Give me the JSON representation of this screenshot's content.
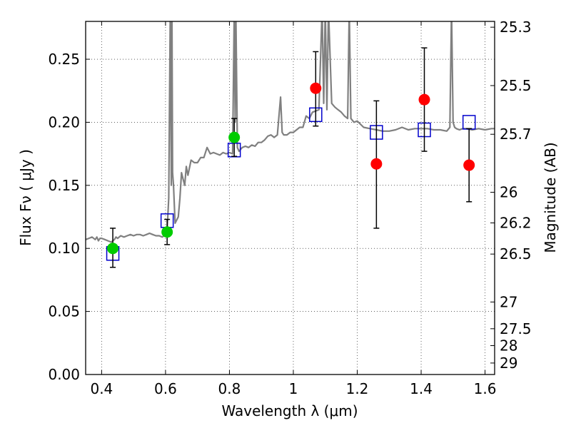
{
  "chart_data": {
    "type": "scatter",
    "title": "",
    "xlabel": "Wavelength  λ (μm)",
    "ylabel": "Flux  Fν  ( μJy )",
    "ylabel_right": "Magnitude (AB)",
    "xlim": [
      0.35,
      1.63
    ],
    "ylim": [
      0.0,
      0.28
    ],
    "grid": true,
    "x_ticks": [
      0.4,
      0.6,
      0.8,
      1.0,
      1.2,
      1.4,
      1.6
    ],
    "x_tick_labels": [
      "0.4",
      "0.6",
      "0.8",
      "1",
      "1.2",
      "1.4",
      "1.6"
    ],
    "y_ticks": [
      0.0,
      0.05,
      0.1,
      0.15,
      0.2,
      0.25
    ],
    "y_tick_labels": [
      "0.00",
      "0.05",
      "0.10",
      "0.15",
      "0.20",
      "0.25"
    ],
    "right_axis_ticks": [
      {
        "flux": 0.2754,
        "label": "25.3"
      },
      {
        "flux": 0.2291,
        "label": "25.5"
      },
      {
        "flux": 0.1905,
        "label": "25.7"
      },
      {
        "flux": 0.1445,
        "label": "26"
      },
      {
        "flux": 0.1202,
        "label": "26.2"
      },
      {
        "flux": 0.0955,
        "label": "26.5"
      },
      {
        "flux": 0.0575,
        "label": "27"
      },
      {
        "flux": 0.0363,
        "label": "27.5"
      },
      {
        "flux": 0.0229,
        "label": "28"
      },
      {
        "flux": 0.0091,
        "label": "29"
      }
    ],
    "series": [
      {
        "style": "model-spectrum",
        "color": "#808080",
        "x": [
          0.35,
          0.36,
          0.37,
          0.38,
          0.385,
          0.39,
          0.395,
          0.4,
          0.41,
          0.42,
          0.43,
          0.44,
          0.445,
          0.45,
          0.46,
          0.47,
          0.48,
          0.49,
          0.5,
          0.51,
          0.52,
          0.53,
          0.54,
          0.55,
          0.56,
          0.57,
          0.58,
          0.59,
          0.6,
          0.605,
          0.61,
          0.613,
          0.615,
          0.618,
          0.62,
          0.622,
          0.625,
          0.63,
          0.64,
          0.645,
          0.65,
          0.655,
          0.66,
          0.665,
          0.67,
          0.68,
          0.69,
          0.7,
          0.71,
          0.72,
          0.73,
          0.74,
          0.75,
          0.76,
          0.77,
          0.78,
          0.79,
          0.8,
          0.81,
          0.815,
          0.818,
          0.82,
          0.825,
          0.83,
          0.84,
          0.85,
          0.86,
          0.87,
          0.88,
          0.89,
          0.9,
          0.91,
          0.92,
          0.93,
          0.94,
          0.95,
          0.96,
          0.965,
          0.97,
          0.98,
          0.99,
          1.0,
          1.01,
          1.02,
          1.03,
          1.04,
          1.05,
          1.06,
          1.08,
          1.09,
          1.095,
          1.1,
          1.105,
          1.11,
          1.12,
          1.13,
          1.14,
          1.15,
          1.16,
          1.17,
          1.175,
          1.18,
          1.19,
          1.2,
          1.22,
          1.24,
          1.26,
          1.28,
          1.3,
          1.32,
          1.34,
          1.36,
          1.38,
          1.4,
          1.42,
          1.44,
          1.46,
          1.48,
          1.49,
          1.495,
          1.5,
          1.505,
          1.51,
          1.52,
          1.53,
          1.54,
          1.56,
          1.58,
          1.6,
          1.62,
          1.63
        ],
        "y": [
          0.107,
          0.108,
          0.109,
          0.107,
          0.109,
          0.106,
          0.108,
          0.108,
          0.107,
          0.106,
          0.105,
          0.107,
          0.109,
          0.108,
          0.11,
          0.109,
          0.11,
          0.111,
          0.11,
          0.111,
          0.111,
          0.11,
          0.111,
          0.112,
          0.111,
          0.11,
          0.11,
          0.109,
          0.111,
          0.115,
          0.14,
          0.23,
          0.29,
          0.15,
          0.29,
          0.16,
          0.15,
          0.12,
          0.125,
          0.14,
          0.16,
          0.155,
          0.15,
          0.165,
          0.158,
          0.17,
          0.168,
          0.168,
          0.172,
          0.172,
          0.18,
          0.175,
          0.176,
          0.175,
          0.174,
          0.176,
          0.175,
          0.176,
          0.175,
          0.29,
          0.2,
          0.29,
          0.18,
          0.177,
          0.18,
          0.181,
          0.18,
          0.182,
          0.181,
          0.184,
          0.184,
          0.186,
          0.189,
          0.19,
          0.188,
          0.19,
          0.22,
          0.192,
          0.19,
          0.19,
          0.192,
          0.192,
          0.194,
          0.196,
          0.196,
          0.205,
          0.203,
          0.208,
          0.21,
          0.29,
          0.215,
          0.29,
          0.21,
          0.29,
          0.215,
          0.212,
          0.21,
          0.208,
          0.205,
          0.203,
          0.29,
          0.203,
          0.2,
          0.201,
          0.196,
          0.195,
          0.194,
          0.193,
          0.193,
          0.194,
          0.196,
          0.194,
          0.195,
          0.195,
          0.195,
          0.194,
          0.194,
          0.193,
          0.196,
          0.29,
          0.2,
          0.196,
          0.195,
          0.194,
          0.195,
          0.195,
          0.194,
          0.195,
          0.194,
          0.195,
          0.195
        ]
      },
      {
        "style": "open-square",
        "color": "#0000cc",
        "x": [
          0.435,
          0.605,
          0.815,
          1.07,
          1.26,
          1.41,
          1.55
        ],
        "y": [
          0.096,
          0.122,
          0.178,
          0.206,
          0.192,
          0.194,
          0.2
        ]
      },
      {
        "style": "filled-circle",
        "color": "#00cc00",
        "x": [
          0.435,
          0.605,
          0.815
        ],
        "y": [
          0.1,
          0.113,
          0.188
        ],
        "yerr_low": [
          0.015,
          0.01,
          0.015
        ],
        "yerr_high": [
          0.016,
          0.01,
          0.015
        ]
      },
      {
        "style": "filled-circle",
        "color": "#ff0000",
        "x": [
          1.07,
          1.26,
          1.41,
          1.55
        ],
        "y": [
          0.227,
          0.167,
          0.218,
          0.166
        ],
        "yerr_low": [
          0.03,
          0.051,
          0.041,
          0.029
        ],
        "yerr_high": [
          0.029,
          0.05,
          0.041,
          0.029
        ]
      }
    ]
  }
}
